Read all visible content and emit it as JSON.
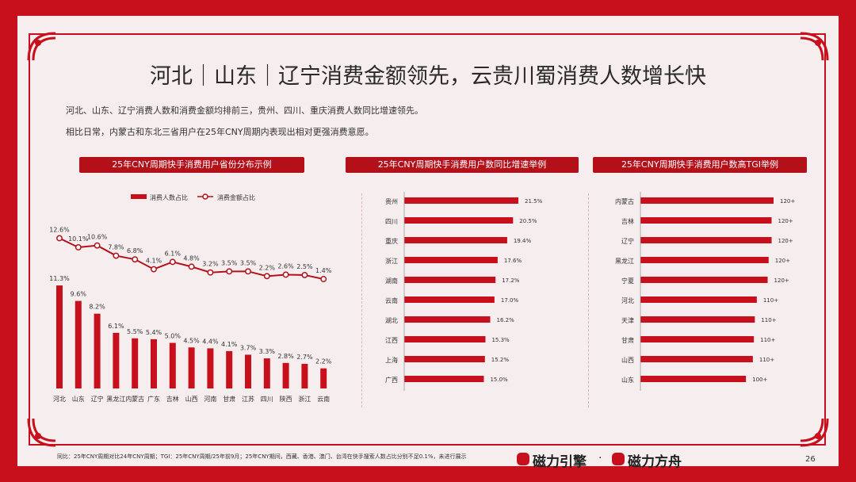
{
  "title": "河北｜山东｜辽宁消费金额领先，云贵川蜀消费人数增长快",
  "desc_lines": [
    "河北、山东、辽宁消费人数和消费金额均排前三，贵州、四川、重庆消费人数同比增速领先。",
    "相比日常，内蒙古和东北三省用户在25年CNY周期内表现出相对更强消费意愿。"
  ],
  "tags": [
    "25年CNY周期快手消费用户省份分布示例",
    "25年CNY周期快手消费用户数同比增速举例",
    "25年CNY周期快手消费用户数高TGI举例"
  ],
  "footer": {
    "note": "同比：25年CNY周期对比24年CNY周期；TGI：25年CNY周期/25年前9月；25年CNY期间，西藏、香港、澳门、台湾在快手搜索人数占比分别不足0.1%，未进行展示",
    "brand1": "磁力引擎",
    "dot": "·",
    "brand2": "磁力方舟",
    "page": "26"
  },
  "colors": {
    "accent": "#c8101c",
    "bar": "#c8101c",
    "line": "#b3101a"
  },
  "chart_data": [
    {
      "type": "bar",
      "legend": [
        "消费人数占比",
        "消费金额占比"
      ],
      "legend_position": "top",
      "categories": [
        "河北",
        "山东",
        "辽宁",
        "黑龙江",
        "内蒙古",
        "广东",
        "吉林",
        "山西",
        "河南",
        "甘肃",
        "江苏",
        "四川",
        "陕西",
        "浙江",
        "云南"
      ],
      "series": [
        {
          "name": "消费人数占比",
          "kind": "bar",
          "values": [
            11.3,
            9.6,
            8.2,
            6.1,
            5.5,
            5.4,
            5.0,
            4.5,
            4.4,
            4.1,
            3.7,
            3.3,
            2.8,
            2.7,
            2.2
          ]
        },
        {
          "name": "消费金额占比",
          "kind": "line",
          "values": [
            12.6,
            10.1,
            10.6,
            7.8,
            6.8,
            4.1,
            6.1,
            4.8,
            3.2,
            3.5,
            3.5,
            2.2,
            2.6,
            2.5,
            1.4
          ]
        }
      ],
      "unit": "%",
      "grid": false
    },
    {
      "type": "bar",
      "orientation": "horizontal",
      "categories": [
        "贵州",
        "四川",
        "重庆",
        "浙江",
        "湖南",
        "云南",
        "湖北",
        "江西",
        "上海",
        "广西"
      ],
      "labels": [
        "21.5%",
        "20.5%",
        "19.4%",
        "17.6%",
        "17.2%",
        "17.0%",
        "16.2%",
        "15.3%",
        "15.2%",
        "15.0%"
      ],
      "values": [
        21.5,
        20.5,
        19.4,
        17.6,
        17.2,
        17.0,
        16.2,
        15.3,
        15.2,
        15.0
      ],
      "grid": false
    },
    {
      "type": "bar",
      "orientation": "horizontal",
      "categories": [
        "内蒙古",
        "吉林",
        "辽宁",
        "黑龙江",
        "宁夏",
        "河北",
        "天津",
        "甘肃",
        "山西",
        "山东"
      ],
      "labels": [
        "120+",
        "120+",
        "120+",
        "120+",
        "120+",
        "110+",
        "110+",
        "110+",
        "110+",
        "100+"
      ],
      "values": [
        135,
        133,
        133,
        130,
        129,
        118,
        116,
        115,
        114,
        107
      ],
      "grid": false
    }
  ]
}
